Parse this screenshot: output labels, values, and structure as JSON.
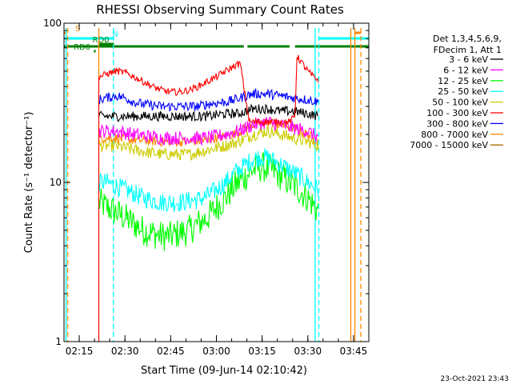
{
  "chart_data": {
    "type": "line",
    "title": "RHESSI Observing Summary Count Rates",
    "xlabel": "Start Time (09-Jun-14 02:10:42)",
    "ylabel": "Count Rate (s⁻¹ detector⁻¹)",
    "ylim": [
      1,
      100
    ],
    "yscale": "log",
    "ytick_labels": [
      "1",
      "10",
      "100"
    ],
    "xlim": [
      "02:10",
      "03:50"
    ],
    "xticks": [
      "02:15",
      "02:30",
      "02:45",
      "03:00",
      "03:15",
      "03:30",
      "03:45"
    ],
    "legend": {
      "position": "right",
      "header": [
        "Det 1,3,4,5,6,9,",
        "FDecim 1, Att 1"
      ]
    },
    "series": [
      {
        "name": "3 - 6 keV",
        "color": "#000000",
        "values": [
          [
            2.357,
            26
          ],
          [
            2.45,
            26
          ],
          [
            2.55,
            26
          ],
          [
            2.7,
            26
          ],
          [
            2.85,
            26
          ],
          [
            2.95,
            26
          ],
          [
            3.05,
            27
          ],
          [
            3.12,
            27
          ],
          [
            3.163,
            28
          ],
          [
            3.2,
            29
          ],
          [
            3.28,
            29
          ],
          [
            3.35,
            28
          ],
          [
            3.42,
            28
          ],
          [
            3.5,
            27
          ],
          [
            3.56,
            26
          ]
        ]
      },
      {
        "name": "6 - 12 keV",
        "color": "#ff00ff",
        "values": [
          [
            2.357,
            21
          ],
          [
            2.45,
            21
          ],
          [
            2.55,
            20
          ],
          [
            2.7,
            19
          ],
          [
            2.85,
            19
          ],
          [
            2.95,
            19
          ],
          [
            3.05,
            20
          ],
          [
            3.12,
            21
          ],
          [
            3.163,
            22
          ],
          [
            3.2,
            23
          ],
          [
            3.28,
            24
          ],
          [
            3.35,
            23
          ],
          [
            3.42,
            22
          ],
          [
            3.5,
            21
          ],
          [
            3.56,
            19
          ]
        ]
      },
      {
        "name": "12 - 25 keV",
        "color": "#00ff00",
        "values": [
          [
            2.357,
            7.5
          ],
          [
            2.4,
            7
          ],
          [
            2.45,
            6.5
          ],
          [
            2.5,
            6
          ],
          [
            2.55,
            5.5
          ],
          [
            2.6,
            5
          ],
          [
            2.65,
            4.8
          ],
          [
            2.7,
            4.6
          ],
          [
            2.75,
            4.6
          ],
          [
            2.8,
            4.8
          ],
          [
            2.85,
            5
          ],
          [
            2.9,
            5.5
          ],
          [
            2.95,
            6
          ],
          [
            3.0,
            7
          ],
          [
            3.05,
            8
          ],
          [
            3.1,
            9.5
          ],
          [
            3.163,
            11
          ],
          [
            3.2,
            12
          ],
          [
            3.25,
            12.5
          ],
          [
            3.3,
            12
          ],
          [
            3.35,
            11
          ],
          [
            3.4,
            10
          ],
          [
            3.45,
            9
          ],
          [
            3.5,
            8
          ],
          [
            3.56,
            6.5
          ]
        ]
      },
      {
        "name": "25 - 50 keV",
        "color": "#00ffff",
        "values": [
          [
            2.357,
            10
          ],
          [
            2.4,
            10
          ],
          [
            2.45,
            9.5
          ],
          [
            2.5,
            9
          ],
          [
            2.55,
            8.5
          ],
          [
            2.6,
            8
          ],
          [
            2.7,
            7.5
          ],
          [
            2.8,
            7.5
          ],
          [
            2.9,
            7.8
          ],
          [
            2.95,
            8.2
          ],
          [
            3.0,
            9
          ],
          [
            3.05,
            10
          ],
          [
            3.1,
            11.5
          ],
          [
            3.163,
            13
          ],
          [
            3.2,
            14
          ],
          [
            3.25,
            14.5
          ],
          [
            3.3,
            14
          ],
          [
            3.35,
            13
          ],
          [
            3.4,
            12
          ],
          [
            3.45,
            11
          ],
          [
            3.5,
            10
          ],
          [
            3.56,
            9
          ]
        ]
      },
      {
        "name": "50 - 100 keV",
        "color": "#cccc00",
        "values": [
          [
            2.357,
            17
          ],
          [
            2.45,
            17
          ],
          [
            2.55,
            16
          ],
          [
            2.7,
            15
          ],
          [
            2.85,
            15
          ],
          [
            2.95,
            16
          ],
          [
            3.05,
            17
          ],
          [
            3.12,
            18
          ],
          [
            3.163,
            19
          ],
          [
            3.2,
            20
          ],
          [
            3.28,
            21
          ],
          [
            3.35,
            20
          ],
          [
            3.42,
            19
          ],
          [
            3.5,
            18
          ],
          [
            3.56,
            17
          ]
        ]
      },
      {
        "name": "100 - 300 keV",
        "color": "#ff0000",
        "values": [
          [
            2.357,
            46
          ],
          [
            2.4,
            48
          ],
          [
            2.45,
            50
          ],
          [
            2.5,
            49
          ],
          [
            2.55,
            46
          ],
          [
            2.6,
            43
          ],
          [
            2.65,
            40
          ],
          [
            2.7,
            38
          ],
          [
            2.75,
            37
          ],
          [
            2.8,
            37
          ],
          [
            2.85,
            38
          ],
          [
            2.9,
            40
          ],
          [
            2.95,
            43
          ],
          [
            3.0,
            46
          ],
          [
            3.05,
            50
          ],
          [
            3.1,
            54
          ],
          [
            3.13,
            56
          ],
          [
            3.18,
            24
          ],
          [
            3.25,
            24
          ],
          [
            3.33,
            24
          ],
          [
            3.4,
            24
          ],
          [
            3.43,
            26
          ],
          [
            3.44,
            62
          ],
          [
            3.46,
            58
          ],
          [
            3.5,
            50
          ],
          [
            3.53,
            46
          ],
          [
            3.56,
            44
          ]
        ]
      },
      {
        "name": "300 - 800 keV",
        "color": "#0000ff",
        "values": [
          [
            2.357,
            33
          ],
          [
            2.4,
            34
          ],
          [
            2.45,
            35
          ],
          [
            2.5,
            34
          ],
          [
            2.55,
            32
          ],
          [
            2.6,
            31
          ],
          [
            2.7,
            30
          ],
          [
            2.8,
            30
          ],
          [
            2.9,
            30
          ],
          [
            2.95,
            31
          ],
          [
            3.05,
            32
          ],
          [
            3.1,
            33
          ],
          [
            3.163,
            35
          ],
          [
            3.2,
            36
          ],
          [
            3.28,
            36
          ],
          [
            3.35,
            35
          ],
          [
            3.42,
            34
          ],
          [
            3.5,
            33
          ],
          [
            3.56,
            32
          ]
        ]
      },
      {
        "name": "800 - 7000 keV",
        "color": "#ff8800",
        "values": [
          [
            2.357,
            19
          ],
          [
            2.45,
            19
          ],
          [
            2.55,
            18.5
          ],
          [
            2.7,
            18
          ],
          [
            2.85,
            18
          ],
          [
            2.95,
            18.5
          ],
          [
            3.05,
            19.5
          ],
          [
            3.12,
            20.5
          ],
          [
            3.163,
            22
          ],
          [
            3.2,
            23
          ],
          [
            3.28,
            24
          ],
          [
            3.35,
            23
          ],
          [
            3.42,
            22
          ],
          [
            3.5,
            20
          ],
          [
            3.56,
            18
          ]
        ]
      },
      {
        "name": "7000 - 15000 keV",
        "color": "#aa6600",
        "values": []
      }
    ],
    "flags": [
      {
        "label": "S",
        "color": "#ff8800",
        "segments": [
          [
            2.16,
            2.18
          ],
          [
            3.757,
            3.79
          ]
        ]
      },
      {
        "label": "N",
        "color": "#00ffff",
        "segments": [
          [
            2.16,
            2.44
          ],
          [
            3.56,
            3.85
          ]
        ]
      },
      {
        "label": "RD0",
        "color": "#008000",
        "segments": [
          [
            2.357,
            2.44
          ]
        ]
      },
      {
        "label": "RD6",
        "color": "#008000",
        "segments": [
          [
            2.33,
            2.34
          ]
        ]
      },
      {
        "label": "",
        "color": "#008000",
        "segments": [
          [
            2.16,
            3.15
          ],
          [
            3.17,
            3.4
          ],
          [
            3.43,
            3.85
          ]
        ]
      }
    ],
    "vlines": [
      {
        "x": 2.187,
        "color": "#ff8800",
        "style": "dashed"
      },
      {
        "x": 2.357,
        "color": "#ff8800",
        "style": "solid"
      },
      {
        "x": 2.437,
        "color": "#00ffff",
        "style": "dashed"
      },
      {
        "x": 2.178,
        "color": "#00ffff",
        "style": "solid"
      },
      {
        "x": 3.54,
        "color": "#00ffff",
        "style": "solid"
      },
      {
        "x": 3.56,
        "color": "#00ffff",
        "style": "dashed"
      },
      {
        "x": 3.735,
        "color": "#ff8800",
        "style": "solid"
      },
      {
        "x": 3.757,
        "color": "#ff8800",
        "style": "solid"
      },
      {
        "x": 3.79,
        "color": "#ff8800",
        "style": "dashed"
      },
      {
        "x": 3.845,
        "color": "#00ffff",
        "style": "dashed"
      }
    ]
  },
  "footer": {
    "timestamp": "23-Oct-2021 23:43"
  }
}
